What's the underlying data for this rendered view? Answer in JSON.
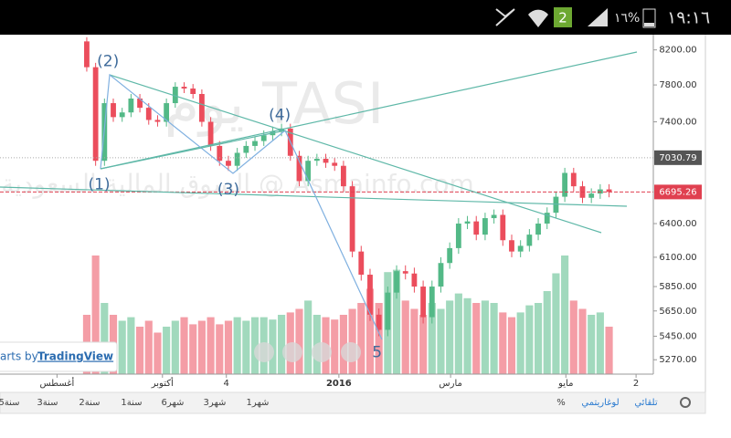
{
  "status_bar": {
    "badge": "2",
    "battery": "١٦%",
    "time": "١٩:١٦"
  },
  "chart_data": {
    "type": "candlestick",
    "watermark": "يوم TASI",
    "watermark_sub": "السوق المالية السعودية @ Asmainfo.com",
    "open": [
      8300,
      8000,
      7000,
      7600,
      7450,
      7500,
      7650,
      7550,
      7420,
      7400,
      7600,
      7780,
      7760,
      7700,
      7400,
      7150,
      7000,
      6950,
      7080,
      7150,
      7200,
      7260,
      7300,
      7330,
      7050,
      6800,
      7000,
      7020,
      6980,
      6950,
      6750,
      6150,
      5950,
      5620,
      5500,
      5800,
      5980,
      5960,
      5850,
      5600,
      5850,
      6050,
      6180,
      6400,
      6420,
      6300,
      6450,
      6480,
      6250,
      6150,
      6200,
      6300,
      6400,
      6500,
      6650,
      6880,
      6750,
      6640,
      6680,
      6720
    ],
    "high": [
      8350,
      8050,
      7650,
      7650,
      7550,
      7700,
      7700,
      7600,
      7470,
      7650,
      7830,
      7830,
      7810,
      7750,
      7450,
      7200,
      7050,
      7130,
      7200,
      7250,
      7310,
      7350,
      7380,
      7380,
      7100,
      7050,
      7070,
      7070,
      7030,
      7000,
      6800,
      6200,
      6000,
      5670,
      5850,
      6030,
      6030,
      6010,
      5900,
      5900,
      6100,
      6230,
      6450,
      6470,
      6470,
      6500,
      6530,
      6530,
      6300,
      6250,
      6350,
      6450,
      6550,
      6700,
      6930,
      6930,
      6800,
      6730,
      6770,
      6770
    ],
    "low": [
      7950,
      6950,
      6950,
      7400,
      7400,
      7450,
      7500,
      7370,
      7350,
      7350,
      7550,
      7710,
      7650,
      7350,
      7100,
      6950,
      6900,
      6900,
      7030,
      7100,
      7150,
      7210,
      7250,
      7000,
      6750,
      6750,
      6950,
      6930,
      6900,
      6700,
      6100,
      5900,
      5570,
      5450,
      5450,
      5750,
      5910,
      5800,
      5550,
      5550,
      5800,
      6000,
      6130,
      6350,
      6250,
      6250,
      6400,
      6200,
      6100,
      6100,
      6150,
      6250,
      6350,
      6450,
      6600,
      6700,
      6590,
      6590,
      6630,
      6645
    ],
    "close": [
      8000,
      7000,
      7600,
      7450,
      7500,
      7650,
      7550,
      7420,
      7400,
      7600,
      7780,
      7760,
      7700,
      7400,
      7150,
      7000,
      6950,
      7080,
      7150,
      7200,
      7260,
      7300,
      7330,
      7050,
      6800,
      7000,
      7020,
      6980,
      6950,
      6750,
      6150,
      5950,
      5620,
      5500,
      5800,
      5980,
      5960,
      5850,
      5600,
      5850,
      6050,
      6180,
      6400,
      6420,
      6300,
      6450,
      6480,
      6250,
      6150,
      6200,
      6300,
      6400,
      6500,
      6650,
      6880,
      6750,
      6640,
      6680,
      6720,
      6695.26
    ],
    "volume": [
      50,
      100,
      60,
      50,
      45,
      48,
      40,
      45,
      35,
      40,
      45,
      48,
      42,
      45,
      48,
      42,
      45,
      48,
      45,
      48,
      48,
      46,
      50,
      52,
      55,
      62,
      50,
      48,
      46,
      50,
      55,
      60,
      72,
      60,
      86,
      88,
      62,
      55,
      50,
      60,
      55,
      62,
      68,
      64,
      60,
      62,
      60,
      52,
      48,
      52,
      58,
      60,
      70,
      85,
      100,
      62,
      55,
      50,
      52,
      40
    ],
    "volume_ylim": [
      0,
      100
    ],
    "up_color": "#53b987",
    "down_color": "#eb4d5c",
    "log_scale": true,
    "ylim": [
      5163,
      8380
    ],
    "yticks": [
      {
        "value": 8200,
        "label": "8200.00"
      },
      {
        "value": 7800,
        "label": "7800.00"
      },
      {
        "value": 7400,
        "label": "7400.00"
      },
      {
        "value": 6400,
        "label": "6400.00"
      },
      {
        "value": 6100,
        "label": "6100.00"
      },
      {
        "value": 5850,
        "label": "5850.00"
      },
      {
        "value": 5650,
        "label": "5650.00"
      },
      {
        "value": 5450,
        "label": "5450.00"
      },
      {
        "value": 5270,
        "label": "5270.00"
      }
    ],
    "marked_price": 7030.79,
    "last_price": 6695.26,
    "xlim": [
      -9.8,
      64
    ],
    "xticks": [
      {
        "value": -3.36,
        "label": "أغسطس"
      },
      {
        "value": 8.55,
        "label": "أكتوبر"
      },
      {
        "value": 15.77,
        "label": "4"
      },
      {
        "value": 28.48,
        "label": "2016"
      },
      {
        "value": 41.1,
        "label": "مارس"
      },
      {
        "value": 54.12,
        "label": "مايو"
      },
      {
        "value": 62.05,
        "label": "2"
      }
    ],
    "annotations": [
      {
        "text": "(1)",
        "x": 1.4,
        "y": 6766
      },
      {
        "text": "(2)",
        "x": 2.4,
        "y": 8066
      },
      {
        "text": "(3)",
        "x": 16,
        "y": 6714
      },
      {
        "text": "(4)",
        "x": 21.8,
        "y": 7467
      },
      {
        "text": "5",
        "x": 32.8,
        "y": 5322
      }
    ],
    "credit": "arts by",
    "credit_link": "TradingView"
  },
  "toolbar": {
    "ranges": [
      "5سنة",
      "3سنة",
      "2سنة",
      "1سنة",
      "6شهر",
      "3شهر",
      "1شهر"
    ],
    "percent": "%",
    "log": "لوغاريتمي",
    "auto": "تلقائي"
  }
}
